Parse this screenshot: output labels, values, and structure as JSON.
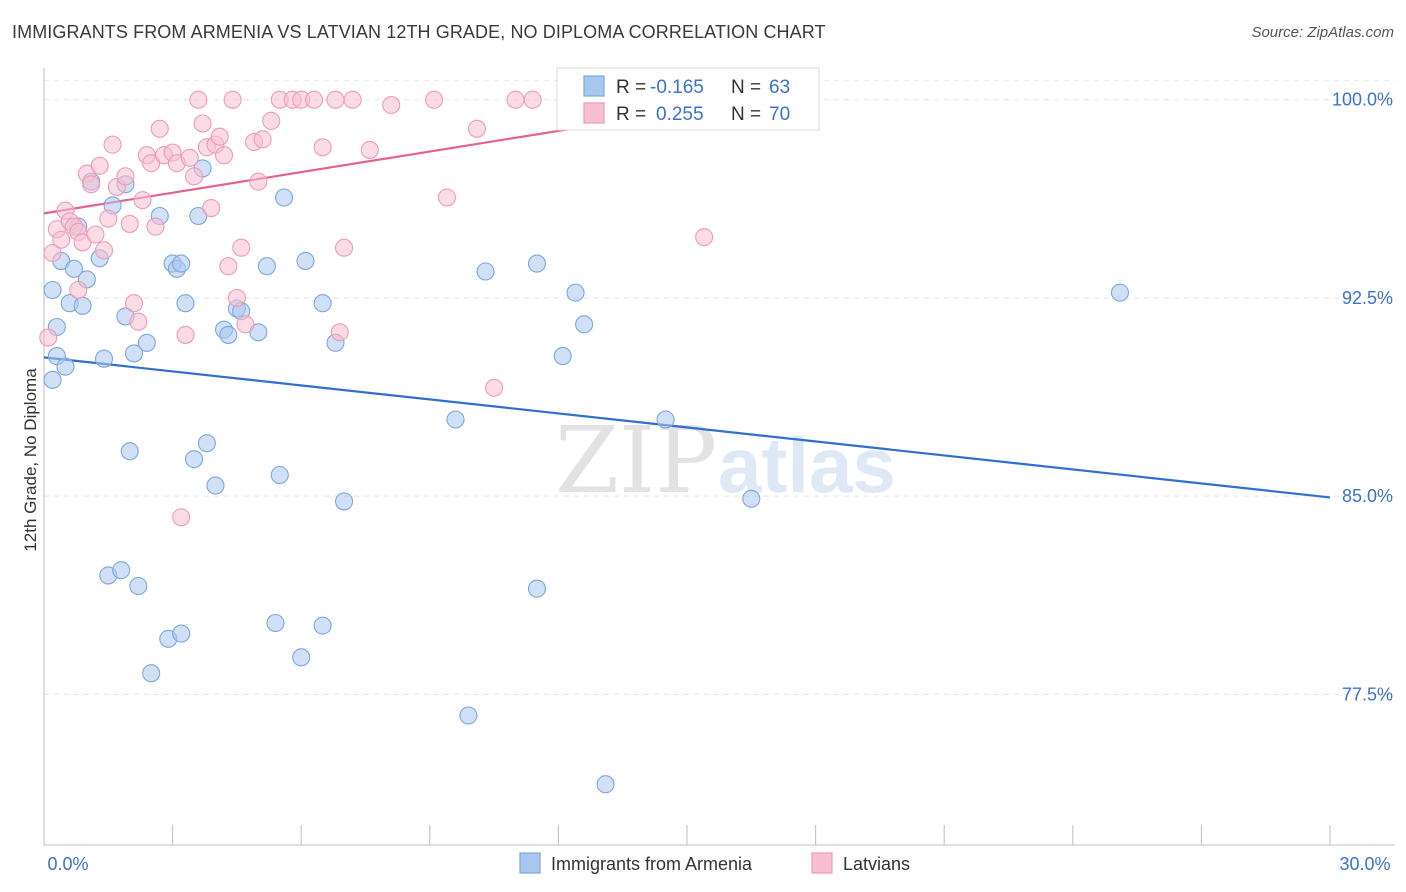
{
  "header": {
    "title": "IMMIGRANTS FROM ARMENIA VS LATVIAN 12TH GRADE, NO DIPLOMA CORRELATION CHART",
    "source": "Source: ZipAtlas.com"
  },
  "watermark": {
    "zip": "ZIP",
    "atlas": "atlas"
  },
  "legend": {
    "rows": [
      {
        "r_label": "R =",
        "r_value": "-0.165",
        "n_label": "N =",
        "n_value": "63",
        "color": "#9ec0ee"
      },
      {
        "r_label": "R =",
        "r_value": "0.255",
        "n_label": "N =",
        "n_value": "70",
        "color": "#f5b3c8"
      }
    ]
  },
  "bottom_legend": [
    {
      "label": "Immigrants from Armenia",
      "color": "#9ec0ee"
    },
    {
      "label": "Latvians",
      "color": "#f5b3c8"
    }
  ],
  "chart_data": {
    "type": "scatter",
    "ylabel": "12th Grade, No Diploma",
    "xlabel": "",
    "xlim": [
      0,
      30
    ],
    "ylim": [
      71.8,
      101.2
    ],
    "x_tick_labels": [
      {
        "value": 0,
        "label": "0.0%"
      },
      {
        "value": 30,
        "label": "30.0%"
      }
    ],
    "y_tick_labels": [
      {
        "value": 100,
        "label": "100.0%"
      },
      {
        "value": 92.5,
        "label": "92.5%"
      },
      {
        "value": 85,
        "label": "85.0%"
      },
      {
        "value": 77.5,
        "label": "77.5%"
      }
    ],
    "x_minor_ticks": [
      3,
      6,
      9,
      12,
      15,
      18,
      21,
      24,
      27,
      30
    ],
    "colors": {
      "blue_fill": "#a9c8f0",
      "blue_stroke": "#7ea6dd",
      "blue_line": "#2f6fd0",
      "pink_fill": "#f7bfd2",
      "pink_stroke": "#ee9bb7",
      "pink_line": "#e5628f"
    },
    "series": [
      {
        "name": "Immigrants from Armenia",
        "color": "#a9c8f0",
        "trend": {
          "x": [
            0,
            30
          ],
          "y": [
            90.25,
            84.95
          ]
        },
        "points": [
          [
            0.2,
            89.4
          ],
          [
            0.3,
            90.3
          ],
          [
            0.2,
            92.8
          ],
          [
            0.3,
            91.4
          ],
          [
            0.5,
            89.9
          ],
          [
            0.6,
            92.3
          ],
          [
            0.4,
            93.9
          ],
          [
            0.7,
            93.6
          ],
          [
            0.9,
            92.2
          ],
          [
            0.8,
            95.2
          ],
          [
            1.0,
            93.2
          ],
          [
            1.3,
            94.0
          ],
          [
            1.1,
            96.9
          ],
          [
            1.6,
            96.0
          ],
          [
            1.4,
            90.2
          ],
          [
            1.9,
            96.8
          ],
          [
            2.1,
            90.4
          ],
          [
            2.4,
            90.8
          ],
          [
            1.9,
            91.8
          ],
          [
            2.0,
            86.7
          ],
          [
            2.7,
            95.6
          ],
          [
            3.0,
            93.8
          ],
          [
            3.1,
            93.6
          ],
          [
            3.2,
            93.8
          ],
          [
            3.3,
            92.3
          ],
          [
            3.7,
            97.4
          ],
          [
            3.6,
            95.6
          ],
          [
            4.2,
            91.3
          ],
          [
            4.3,
            91.1
          ],
          [
            4.5,
            92.1
          ],
          [
            4.6,
            92.0
          ],
          [
            5.0,
            91.2
          ],
          [
            5.2,
            93.7
          ],
          [
            3.5,
            86.4
          ],
          [
            3.8,
            87.0
          ],
          [
            4.0,
            85.4
          ],
          [
            5.5,
            85.8
          ],
          [
            5.6,
            96.3
          ],
          [
            6.1,
            93.9
          ],
          [
            6.5,
            92.3
          ],
          [
            6.8,
            90.8
          ],
          [
            7.0,
            84.8
          ],
          [
            9.6,
            87.9
          ],
          [
            10.3,
            93.5
          ],
          [
            11.5,
            93.8
          ],
          [
            12.1,
            90.3
          ],
          [
            12.4,
            92.7
          ],
          [
            12.6,
            91.5
          ],
          [
            14.5,
            87.9
          ],
          [
            16.5,
            84.9
          ],
          [
            25.1,
            92.7
          ],
          [
            1.5,
            82.0
          ],
          [
            1.8,
            82.2
          ],
          [
            2.2,
            81.6
          ],
          [
            2.9,
            79.6
          ],
          [
            3.2,
            79.8
          ],
          [
            2.5,
            78.3
          ],
          [
            5.4,
            80.2
          ],
          [
            6.0,
            78.9
          ],
          [
            6.5,
            80.1
          ],
          [
            9.9,
            76.7
          ],
          [
            11.5,
            81.5
          ],
          [
            13.1,
            74.1
          ]
        ]
      },
      {
        "name": "Latvians",
        "color": "#f7bfd2",
        "trend": {
          "x": [
            0,
            15
          ],
          "y": [
            95.7,
            99.6
          ]
        },
        "points": [
          [
            0.1,
            91.0
          ],
          [
            0.2,
            94.2
          ],
          [
            0.3,
            95.1
          ],
          [
            0.4,
            94.7
          ],
          [
            0.5,
            95.8
          ],
          [
            0.6,
            95.4
          ],
          [
            0.7,
            95.2
          ],
          [
            0.8,
            95.0
          ],
          [
            0.9,
            94.6
          ],
          [
            1.0,
            97.2
          ],
          [
            1.1,
            96.8
          ],
          [
            1.2,
            94.9
          ],
          [
            1.3,
            97.5
          ],
          [
            1.4,
            94.3
          ],
          [
            1.6,
            98.3
          ],
          [
            1.7,
            96.7
          ],
          [
            1.9,
            97.1
          ],
          [
            2.0,
            95.3
          ],
          [
            2.1,
            92.3
          ],
          [
            2.2,
            91.6
          ],
          [
            2.4,
            97.9
          ],
          [
            2.5,
            97.6
          ],
          [
            2.6,
            95.2
          ],
          [
            2.7,
            98.9
          ],
          [
            2.8,
            97.9
          ],
          [
            3.0,
            98.0
          ],
          [
            3.1,
            97.6
          ],
          [
            3.3,
            91.1
          ],
          [
            3.4,
            97.8
          ],
          [
            3.5,
            97.1
          ],
          [
            3.6,
            100.0
          ],
          [
            3.7,
            99.1
          ],
          [
            3.8,
            98.2
          ],
          [
            3.9,
            95.9
          ],
          [
            4.0,
            98.3
          ],
          [
            4.1,
            98.6
          ],
          [
            4.2,
            97.9
          ],
          [
            4.3,
            93.7
          ],
          [
            4.5,
            92.5
          ],
          [
            4.6,
            94.4
          ],
          [
            4.7,
            91.5
          ],
          [
            4.9,
            98.4
          ],
          [
            5.1,
            98.5
          ],
          [
            5.3,
            99.2
          ],
          [
            5.5,
            100.0
          ],
          [
            5.8,
            100.0
          ],
          [
            6.0,
            100.0
          ],
          [
            6.3,
            100.0
          ],
          [
            6.5,
            98.2
          ],
          [
            6.8,
            100.0
          ],
          [
            6.9,
            91.2
          ],
          [
            7.0,
            94.4
          ],
          [
            7.2,
            100.0
          ],
          [
            7.6,
            98.1
          ],
          [
            8.1,
            99.8
          ],
          [
            9.1,
            100.0
          ],
          [
            9.4,
            96.3
          ],
          [
            10.1,
            98.9
          ],
          [
            10.5,
            89.1
          ],
          [
            11.0,
            100.0
          ],
          [
            11.4,
            100.0
          ],
          [
            13.0,
            99.5
          ],
          [
            14.2,
            100.0
          ],
          [
            15.4,
            94.8
          ],
          [
            3.2,
            84.2
          ],
          [
            1.5,
            95.5
          ],
          [
            2.3,
            96.2
          ],
          [
            0.8,
            92.8
          ],
          [
            4.4,
            100.0
          ],
          [
            5.0,
            96.9
          ]
        ]
      }
    ]
  }
}
